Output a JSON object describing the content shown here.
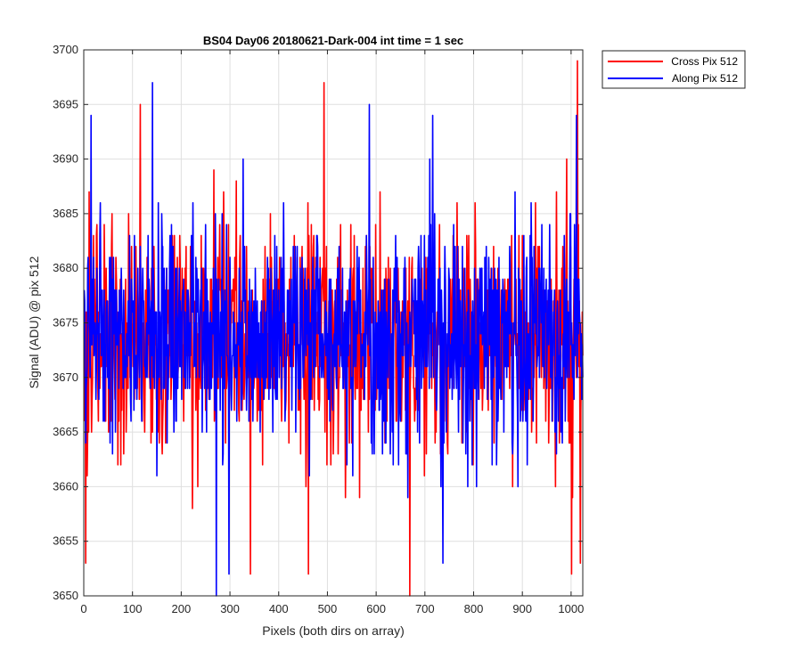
{
  "chart_data": {
    "type": "line",
    "title": "BS04 Day06 20180621-Dark-004 int time = 1 sec",
    "xlabel": "Pixels (both dirs on array)",
    "ylabel": "Signal (ADU) @ pix 512",
    "xlim": [
      0,
      1024
    ],
    "ylim": [
      3650,
      3700
    ],
    "xticks": [
      0,
      100,
      200,
      300,
      400,
      500,
      600,
      700,
      800,
      900,
      1000
    ],
    "yticks": [
      3650,
      3655,
      3660,
      3665,
      3670,
      3675,
      3680,
      3685,
      3690,
      3695,
      3700
    ],
    "grid": true,
    "legend_position": "outside-top-right",
    "n_points": 1024,
    "series": [
      {
        "name": "Cross Pix 512",
        "color": "#ff0000",
        "mean": 3673.5,
        "std": 5.2,
        "notable_points": [
          {
            "x": 3,
            "y": 3653
          },
          {
            "x": 115,
            "y": 3695
          },
          {
            "x": 341,
            "y": 3652
          },
          {
            "x": 460,
            "y": 3652
          },
          {
            "x": 492,
            "y": 3697
          },
          {
            "x": 668,
            "y": 3650
          },
          {
            "x": 1000,
            "y": 3652
          },
          {
            "x": 1012,
            "y": 3699
          },
          {
            "x": 1018,
            "y": 3653
          }
        ]
      },
      {
        "name": "Along Pix 512",
        "color": "#0000ff",
        "mean": 3673.5,
        "std": 5.0,
        "notable_points": [
          {
            "x": 14,
            "y": 3694
          },
          {
            "x": 140,
            "y": 3697
          },
          {
            "x": 271,
            "y": 3650
          },
          {
            "x": 297,
            "y": 3652
          },
          {
            "x": 585,
            "y": 3695
          },
          {
            "x": 715,
            "y": 3694
          },
          {
            "x": 736,
            "y": 3653
          },
          {
            "x": 1010,
            "y": 3694
          }
        ]
      }
    ]
  }
}
